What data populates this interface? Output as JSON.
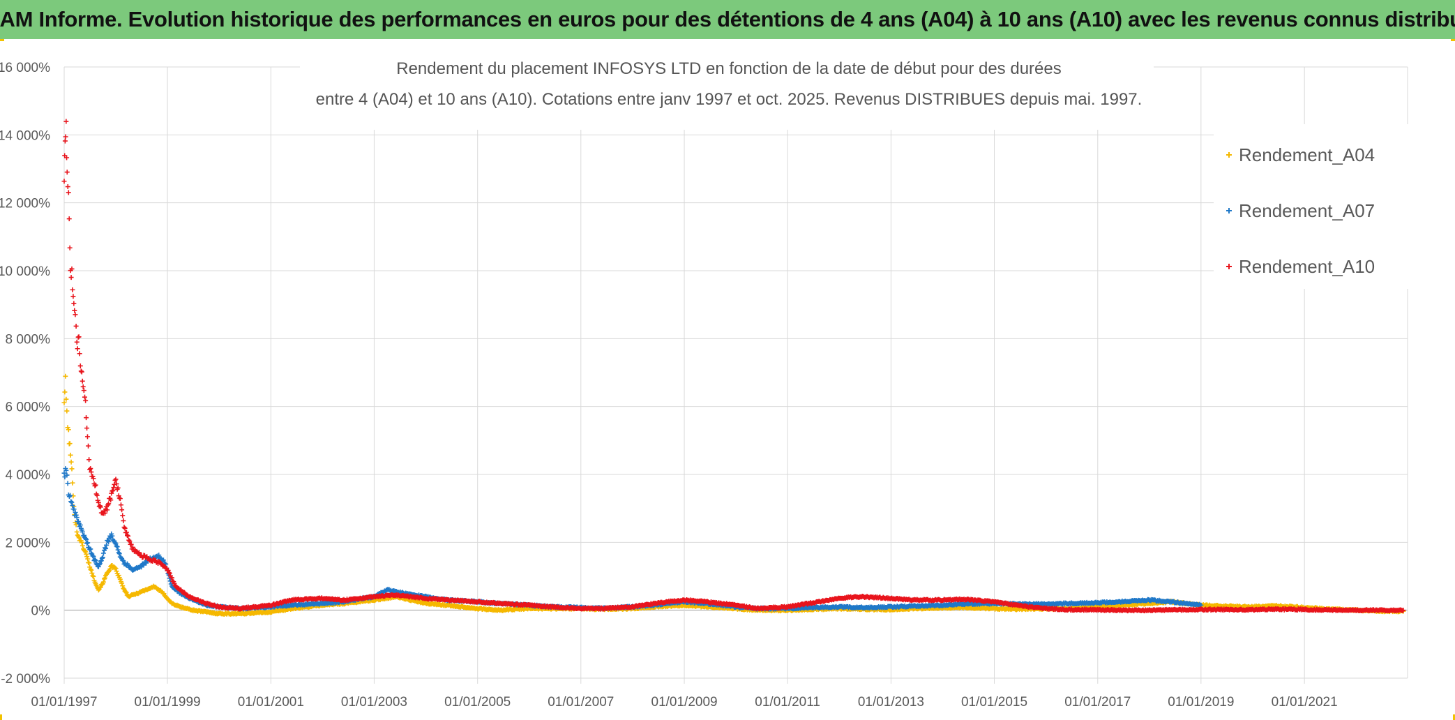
{
  "banner": {
    "title": "ADAM Informe. Evolution historique des performances en euros pour des détentions de 4 ans (A04) à 10 ans (A10) avec les revenus connus distribués"
  },
  "chart_data": {
    "type": "scatter",
    "title_lines": [
      "Rendement du placement INFOSYS LTD en fonction de la date de début pour des durées",
      "entre 4 (A04) et 10 ans (A10). Cotations entre janv 1997 et oct. 2025. Revenus DISTRIBUES depuis mai. 1997."
    ],
    "xlabel": "",
    "ylabel": "",
    "x_range": [
      "1997-01-01",
      "2022-12-31"
    ],
    "x_tick_labels": [
      "01/01/1997",
      "01/01/1999",
      "01/01/2001",
      "01/01/2003",
      "01/01/2005",
      "01/01/2007",
      "01/01/2009",
      "01/01/2011",
      "01/01/2013",
      "01/01/2015",
      "01/01/2017",
      "01/01/2019",
      "01/01/2021"
    ],
    "y_range": [
      -2000,
      16000
    ],
    "y_ticks": [
      -2000,
      0,
      2000,
      4000,
      6000,
      8000,
      10000,
      12000,
      14000,
      16000
    ],
    "y_tick_labels": [
      "-2 000%",
      "0%",
      "2 000%",
      "4 000%",
      "6 000%",
      "8 000%",
      "10 000%",
      "12 000%",
      "14 000%",
      "16 000%"
    ],
    "grid": "horizontal and vertical",
    "legend_position": "top-right",
    "marker": "+",
    "series": [
      {
        "name": "Rendement_A04",
        "color": "#f5b800",
        "points": [
          [
            "1997-01-01",
            6200
          ],
          [
            "1997-01-10",
            6700
          ],
          [
            "1997-01-20",
            5800
          ],
          [
            "1997-02-01",
            5200
          ],
          [
            "1997-02-15",
            4600
          ],
          [
            "1997-03-01",
            3800
          ],
          [
            "1997-03-15",
            2800
          ],
          [
            "1997-04-01",
            2300
          ],
          [
            "1997-05-01",
            2000
          ],
          [
            "1997-06-01",
            1700
          ],
          [
            "1997-07-01",
            1300
          ],
          [
            "1997-08-01",
            900
          ],
          [
            "1997-09-01",
            600
          ],
          [
            "1997-10-01",
            800
          ],
          [
            "1997-11-01",
            1100
          ],
          [
            "1997-12-01",
            1300
          ],
          [
            "1998-01-01",
            1200
          ],
          [
            "1998-02-01",
            900
          ],
          [
            "1998-03-01",
            600
          ],
          [
            "1998-04-01",
            400
          ],
          [
            "1998-06-01",
            500
          ],
          [
            "1998-08-01",
            600
          ],
          [
            "1998-10-01",
            700
          ],
          [
            "1998-12-01",
            500
          ],
          [
            "1999-02-01",
            200
          ],
          [
            "1999-04-01",
            100
          ],
          [
            "1999-07-01",
            0
          ],
          [
            "1999-10-01",
            -50
          ],
          [
            "2000-01-01",
            -100
          ],
          [
            "2000-06-01",
            -100
          ],
          [
            "2001-01-01",
            -50
          ],
          [
            "2001-06-01",
            50
          ],
          [
            "2002-01-01",
            150
          ],
          [
            "2002-06-01",
            200
          ],
          [
            "2003-01-01",
            300
          ],
          [
            "2003-06-01",
            400
          ],
          [
            "2004-01-01",
            200
          ],
          [
            "2004-06-01",
            150
          ],
          [
            "2005-01-01",
            50
          ],
          [
            "2005-06-01",
            0
          ],
          [
            "2006-01-01",
            50
          ],
          [
            "2006-06-01",
            50
          ],
          [
            "2007-01-01",
            50
          ],
          [
            "2007-06-01",
            30
          ],
          [
            "2008-01-01",
            50
          ],
          [
            "2008-06-01",
            100
          ],
          [
            "2009-01-01",
            150
          ],
          [
            "2009-06-01",
            100
          ],
          [
            "2010-01-01",
            50
          ],
          [
            "2010-06-01",
            0
          ],
          [
            "2011-01-01",
            0
          ],
          [
            "2011-06-01",
            20
          ],
          [
            "2012-01-01",
            50
          ],
          [
            "2012-06-01",
            30
          ],
          [
            "2013-01-01",
            20
          ],
          [
            "2013-06-01",
            50
          ],
          [
            "2014-01-01",
            70
          ],
          [
            "2014-06-01",
            80
          ],
          [
            "2015-01-01",
            50
          ],
          [
            "2015-06-01",
            30
          ],
          [
            "2016-01-01",
            50
          ],
          [
            "2016-06-01",
            50
          ],
          [
            "2017-01-01",
            100
          ],
          [
            "2017-06-01",
            150
          ],
          [
            "2018-01-01",
            200
          ],
          [
            "2018-06-01",
            250
          ],
          [
            "2019-01-01",
            150
          ],
          [
            "2019-06-01",
            120
          ],
          [
            "2020-01-01",
            100
          ],
          [
            "2020-06-01",
            130
          ],
          [
            "2021-01-01",
            80
          ],
          [
            "2021-06-01",
            40
          ],
          [
            "2022-01-01",
            0
          ],
          [
            "2022-06-01",
            -20
          ],
          [
            "2022-12-01",
            -30
          ]
        ]
      },
      {
        "name": "Rendement_A07",
        "color": "#1f78c8",
        "points": [
          [
            "1997-01-01",
            4000
          ],
          [
            "1997-01-15",
            4100
          ],
          [
            "1997-02-01",
            3500
          ],
          [
            "1997-03-01",
            3000
          ],
          [
            "1997-04-01",
            2700
          ],
          [
            "1997-05-01",
            2400
          ],
          [
            "1997-06-01",
            2100
          ],
          [
            "1997-07-01",
            1800
          ],
          [
            "1997-08-01",
            1500
          ],
          [
            "1997-09-01",
            1300
          ],
          [
            "1997-10-01",
            1600
          ],
          [
            "1997-11-01",
            2000
          ],
          [
            "1997-12-01",
            2200
          ],
          [
            "1998-01-01",
            2000
          ],
          [
            "1998-02-01",
            1600
          ],
          [
            "1998-03-01",
            1400
          ],
          [
            "1998-05-01",
            1200
          ],
          [
            "1998-07-01",
            1300
          ],
          [
            "1998-09-01",
            1500
          ],
          [
            "1998-11-01",
            1600
          ],
          [
            "1998-12-15",
            1400
          ],
          [
            "1999-02-01",
            700
          ],
          [
            "1999-04-01",
            500
          ],
          [
            "1999-07-01",
            300
          ],
          [
            "1999-10-01",
            150
          ],
          [
            "2000-01-01",
            100
          ],
          [
            "2000-06-01",
            50
          ],
          [
            "2001-01-01",
            100
          ],
          [
            "2001-06-01",
            150
          ],
          [
            "2002-01-01",
            200
          ],
          [
            "2002-06-01",
            250
          ],
          [
            "2003-01-01",
            400
          ],
          [
            "2003-04-01",
            600
          ],
          [
            "2003-08-01",
            500
          ],
          [
            "2004-01-01",
            400
          ],
          [
            "2004-06-01",
            300
          ],
          [
            "2005-01-01",
            250
          ],
          [
            "2005-06-01",
            200
          ],
          [
            "2006-01-01",
            150
          ],
          [
            "2006-06-01",
            100
          ],
          [
            "2007-01-01",
            80
          ],
          [
            "2007-06-01",
            60
          ],
          [
            "2008-01-01",
            100
          ],
          [
            "2008-06-01",
            150
          ],
          [
            "2009-01-01",
            250
          ],
          [
            "2009-06-01",
            200
          ],
          [
            "2010-01-01",
            100
          ],
          [
            "2010-06-01",
            50
          ],
          [
            "2011-01-01",
            50
          ],
          [
            "2011-06-01",
            80
          ],
          [
            "2012-01-01",
            100
          ],
          [
            "2012-06-01",
            80
          ],
          [
            "2013-01-01",
            100
          ],
          [
            "2013-06-01",
            120
          ],
          [
            "2014-01-01",
            150
          ],
          [
            "2014-06-01",
            180
          ],
          [
            "2015-01-01",
            200
          ],
          [
            "2015-06-01",
            180
          ],
          [
            "2016-01-01",
            180
          ],
          [
            "2016-06-01",
            200
          ],
          [
            "2017-01-01",
            220
          ],
          [
            "2017-06-01",
            250
          ],
          [
            "2018-01-01",
            300
          ],
          [
            "2018-06-01",
            250
          ],
          [
            "2019-01-01",
            150
          ]
        ]
      },
      {
        "name": "Rendement_A10",
        "color": "#e8141c",
        "points": [
          [
            "1997-01-01",
            13000
          ],
          [
            "1997-01-08",
            13500
          ],
          [
            "1997-01-15",
            14000
          ],
          [
            "1997-01-22",
            13200
          ],
          [
            "1997-02-01",
            12000
          ],
          [
            "1997-02-15",
            10300
          ],
          [
            "1997-03-01",
            9600
          ],
          [
            "1997-03-15",
            8800
          ],
          [
            "1997-04-01",
            7800
          ],
          [
            "1997-04-15",
            8000
          ],
          [
            "1997-05-01",
            7000
          ],
          [
            "1997-05-15",
            6500
          ],
          [
            "1997-06-01",
            6000
          ],
          [
            "1997-06-15",
            5000
          ],
          [
            "1997-07-01",
            4200
          ],
          [
            "1997-08-01",
            3800
          ],
          [
            "1997-09-01",
            3200
          ],
          [
            "1997-10-01",
            2800
          ],
          [
            "1997-11-01",
            3000
          ],
          [
            "1997-12-01",
            3400
          ],
          [
            "1998-01-01",
            3900
          ],
          [
            "1998-02-01",
            3200
          ],
          [
            "1998-03-01",
            2400
          ],
          [
            "1998-05-01",
            1800
          ],
          [
            "1998-07-01",
            1600
          ],
          [
            "1998-09-01",
            1500
          ],
          [
            "1998-11-01",
            1400
          ],
          [
            "1999-01-01",
            1200
          ],
          [
            "1999-03-01",
            700
          ],
          [
            "1999-06-01",
            400
          ],
          [
            "1999-10-01",
            200
          ],
          [
            "2000-01-01",
            100
          ],
          [
            "2000-06-01",
            50
          ],
          [
            "2001-01-01",
            150
          ],
          [
            "2001-06-01",
            300
          ],
          [
            "2002-01-01",
            350
          ],
          [
            "2002-06-01",
            300
          ],
          [
            "2003-01-01",
            400
          ],
          [
            "2003-06-01",
            450
          ],
          [
            "2004-01-01",
            350
          ],
          [
            "2004-06-01",
            300
          ],
          [
            "2005-01-01",
            250
          ],
          [
            "2005-06-01",
            200
          ],
          [
            "2006-01-01",
            150
          ],
          [
            "2006-06-01",
            100
          ],
          [
            "2007-01-01",
            50
          ],
          [
            "2007-06-01",
            50
          ],
          [
            "2008-01-01",
            100
          ],
          [
            "2008-06-01",
            200
          ],
          [
            "2009-01-01",
            300
          ],
          [
            "2009-06-01",
            250
          ],
          [
            "2010-01-01",
            150
          ],
          [
            "2010-06-01",
            50
          ],
          [
            "2011-01-01",
            100
          ],
          [
            "2011-06-01",
            200
          ],
          [
            "2012-01-01",
            350
          ],
          [
            "2012-06-01",
            400
          ],
          [
            "2013-01-01",
            350
          ],
          [
            "2013-06-01",
            300
          ],
          [
            "2014-01-01",
            300
          ],
          [
            "2014-06-01",
            320
          ],
          [
            "2015-01-01",
            250
          ],
          [
            "2015-06-01",
            150
          ],
          [
            "2016-01-01",
            50
          ],
          [
            "2016-06-01",
            20
          ],
          [
            "2017-01-01",
            10
          ],
          [
            "2017-06-01",
            0
          ],
          [
            "2018-01-01",
            0
          ],
          [
            "2018-06-01",
            10
          ],
          [
            "2019-01-01",
            20
          ],
          [
            "2019-06-01",
            20
          ],
          [
            "2020-01-01",
            20
          ],
          [
            "2020-06-01",
            30
          ],
          [
            "2021-01-01",
            20
          ],
          [
            "2021-06-01",
            10
          ],
          [
            "2022-01-01",
            0
          ],
          [
            "2022-06-01",
            0
          ],
          [
            "2022-12-01",
            0
          ]
        ]
      }
    ]
  }
}
